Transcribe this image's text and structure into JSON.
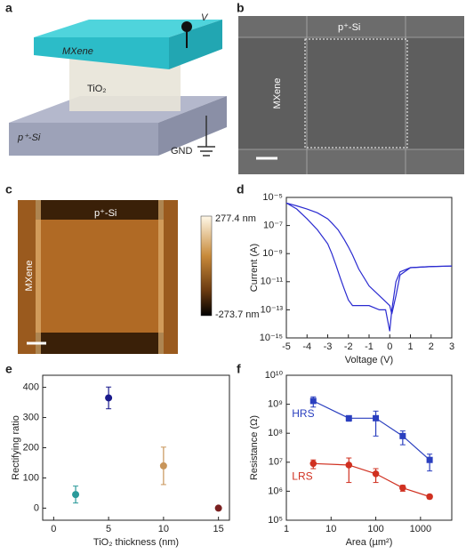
{
  "panel_labels": [
    "a",
    "b",
    "c",
    "d",
    "e",
    "f"
  ],
  "schematic": {
    "top": "MXene",
    "middle": "TiO₂",
    "bottom": "p⁺-Si",
    "voltage": "V",
    "ground": "GND"
  },
  "sem": {
    "top": "p⁺-Si",
    "left": "MXene"
  },
  "afm": {
    "top": "p⁺-Si",
    "left": "MXene",
    "colorbar_max": "277.4 nm",
    "colorbar_min": "-273.7 nm"
  },
  "chart_data": [
    {
      "type": "line",
      "xlabel": "Voltage (V)",
      "ylabel": "Current (A)",
      "log_y": true,
      "xlim": [
        -5,
        3
      ],
      "xticks": [
        -5,
        -4,
        -3,
        -2,
        -1,
        0,
        1,
        2,
        3
      ],
      "ylim": [
        1e-15,
        1e-05
      ],
      "yticks": [
        {
          "value": 1e-15,
          "label": "10⁻¹⁵"
        },
        {
          "value": 1e-13,
          "label": "10⁻¹³"
        },
        {
          "value": 1e-11,
          "label": "10⁻¹¹"
        },
        {
          "value": 1e-09,
          "label": "10⁻⁹"
        },
        {
          "value": 1e-07,
          "label": "10⁻⁷"
        },
        {
          "value": 1e-05,
          "label": "10⁻⁵"
        }
      ],
      "series": [
        {
          "color": "#2a2ad0",
          "x": [
            -5,
            -4.5,
            -4,
            -3.5,
            -3,
            -2.8,
            -2.5,
            -2.2,
            -2,
            -1.8,
            -1.5,
            -1,
            -0.5,
            0,
            0.1,
            0.3,
            0.5,
            1,
            2,
            3
          ],
          "values": [
            4e-06,
            2.5e-06,
            1.5e-06,
            8e-07,
            3e-07,
            1.5e-07,
            5e-08,
            1e-08,
            3e-09,
            8e-10,
            8e-11,
            5e-12,
            1e-12,
            2e-13,
            5e-14,
            1e-12,
            3e-11,
            1e-10,
            1.2e-10,
            1.3e-10
          ]
        },
        {
          "color": "#2a2ad0",
          "x": [
            -5,
            -4.5,
            -4,
            -3.5,
            -3,
            -2.8,
            -2.6,
            -2.4,
            -2.2,
            -2,
            -1.8,
            -1.5,
            -1,
            -0.5,
            -0.2,
            0,
            0.1,
            0.3,
            0.5,
            1,
            2,
            3
          ],
          "values": [
            4e-06,
            1.5e-06,
            3e-07,
            5e-08,
            5e-09,
            1e-09,
            1.5e-10,
            2e-11,
            3e-12,
            5e-13,
            2e-13,
            2e-13,
            2e-13,
            1e-13,
            1e-13,
            3e-15,
            1e-13,
            1e-11,
            5e-11,
            1e-10,
            1.2e-10,
            1.3e-10
          ]
        }
      ]
    },
    {
      "type": "scatter",
      "xlabel": "TiO₂ thickness (nm)",
      "ylabel": "Rectifying ratio",
      "xlim": [
        -1,
        16
      ],
      "xticks": [
        0,
        5,
        10,
        15
      ],
      "ylim": [
        -40,
        440
      ],
      "yticks": [
        0,
        100,
        200,
        300,
        400
      ],
      "x": [
        2,
        5,
        10,
        15
      ],
      "values": [
        45,
        365,
        140,
        0
      ],
      "errors": [
        28,
        36,
        62,
        4
      ],
      "colors": [
        "#2a9a9a",
        "#1a1a8c",
        "#c8955a",
        "#7a2020"
      ]
    },
    {
      "type": "line",
      "xlabel": "Area (µm²)",
      "ylabel": "Resistance (Ω)",
      "log_x": true,
      "log_y": true,
      "xlim": [
        1,
        5000
      ],
      "xticks": [
        1,
        10,
        100,
        1000
      ],
      "ylim": [
        100000,
        10000000000
      ],
      "yticks": [
        {
          "value": 100000,
          "label": "10⁵"
        },
        {
          "value": 1000000,
          "label": "10⁶"
        },
        {
          "value": 10000000,
          "label": "10⁷"
        },
        {
          "value": 100000000,
          "label": "10⁸"
        },
        {
          "value": 1000000000,
          "label": "10⁹"
        },
        {
          "value": 10000000000,
          "label": "10¹⁰"
        }
      ],
      "series": [
        {
          "name": "HRS",
          "color": "#2a3fbf",
          "marker": "square",
          "x": [
            4,
            25,
            100,
            400,
            1600
          ],
          "values": [
            1300000000,
            330000000,
            330000000,
            80000000,
            12000000
          ],
          "errors": [
            500000000,
            70000000,
            250000000,
            40000000,
            7000000
          ]
        },
        {
          "name": "LRS",
          "color": "#d03020",
          "marker": "circle",
          "x": [
            4,
            25,
            100,
            400,
            1600
          ],
          "values": [
            9000000,
            8000000,
            4000000,
            1300000,
            650000
          ],
          "errors": [
            3000000,
            6000000,
            2000000,
            300000,
            100000
          ]
        }
      ]
    }
  ]
}
